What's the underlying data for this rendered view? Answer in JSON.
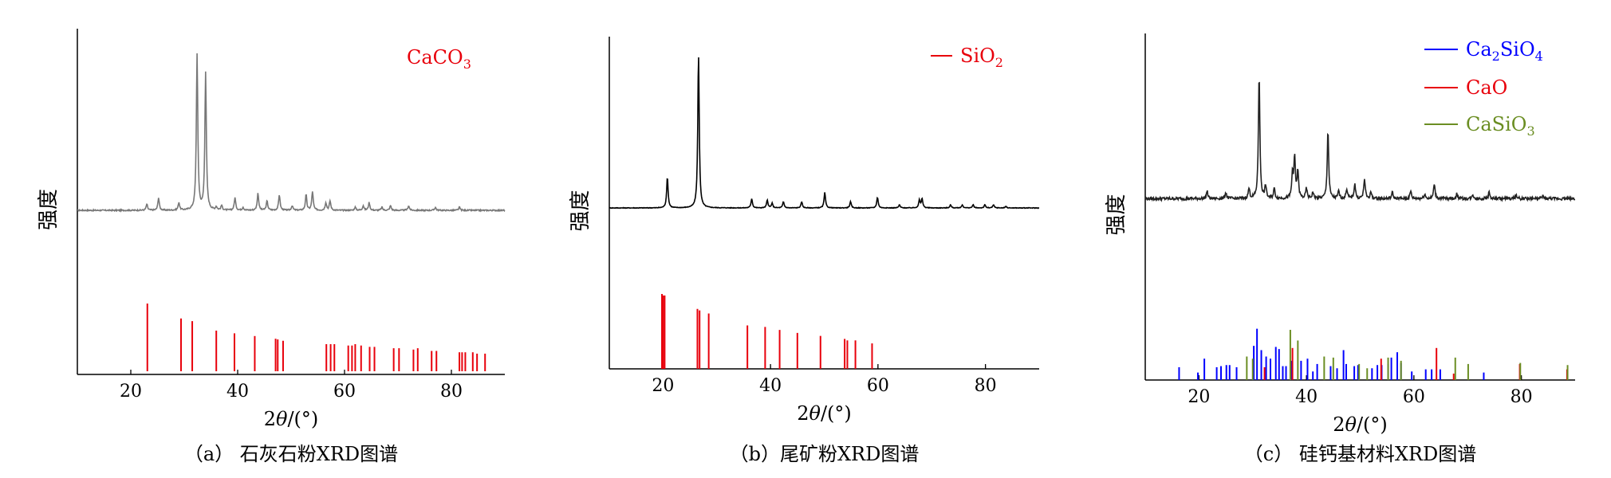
{
  "chart_data": [
    {
      "type": "line",
      "id": "a",
      "caption": "（a） 石灰石粉XRD图谱",
      "xlabel": "2θ/(°)",
      "ylabel": "强度",
      "xlim": [
        10,
        90
      ],
      "xticks": [
        20,
        40,
        60,
        80
      ],
      "trace_color": "#777777",
      "baseline": 0.02,
      "peaks": [
        [
          23.0,
          0.04
        ],
        [
          25.2,
          0.08
        ],
        [
          29.0,
          0.05
        ],
        [
          32.4,
          1.0
        ],
        [
          34.0,
          0.88
        ],
        [
          36.0,
          0.02
        ],
        [
          37.0,
          0.03
        ],
        [
          39.5,
          0.08
        ],
        [
          41.0,
          0.02
        ],
        [
          43.8,
          0.11
        ],
        [
          45.5,
          0.06
        ],
        [
          47.8,
          0.1
        ],
        [
          50.2,
          0.03
        ],
        [
          52.8,
          0.1
        ],
        [
          54.0,
          0.12
        ],
        [
          56.5,
          0.05
        ],
        [
          57.3,
          0.06
        ],
        [
          62.0,
          0.02
        ],
        [
          63.5,
          0.03
        ],
        [
          64.6,
          0.05
        ],
        [
          67.0,
          0.02
        ],
        [
          68.6,
          0.03
        ],
        [
          72.0,
          0.03
        ],
        [
          77.0,
          0.02
        ],
        [
          81.5,
          0.02
        ]
      ],
      "references": [
        {
          "label": "CaCO",
          "sub": "3",
          "color": "#e8000b",
          "lines": [
            [
              23.1,
              1.0
            ],
            [
              29.4,
              0.78
            ],
            [
              31.5,
              0.74
            ],
            [
              36.0,
              0.6
            ],
            [
              39.4,
              0.56
            ],
            [
              43.2,
              0.52
            ],
            [
              47.1,
              0.48
            ],
            [
              47.5,
              0.47
            ],
            [
              48.5,
              0.45
            ],
            [
              56.6,
              0.4
            ],
            [
              57.4,
              0.4
            ],
            [
              58.1,
              0.4
            ],
            [
              60.7,
              0.38
            ],
            [
              61.4,
              0.38
            ],
            [
              62.0,
              0.4
            ],
            [
              63.1,
              0.38
            ],
            [
              64.7,
              0.36
            ],
            [
              65.6,
              0.36
            ],
            [
              69.2,
              0.34
            ],
            [
              70.2,
              0.34
            ],
            [
              72.9,
              0.32
            ],
            [
              73.7,
              0.34
            ],
            [
              76.3,
              0.3
            ],
            [
              77.2,
              0.3
            ],
            [
              81.5,
              0.28
            ],
            [
              82.0,
              0.28
            ],
            [
              82.6,
              0.28
            ],
            [
              84.0,
              0.28
            ],
            [
              84.8,
              0.26
            ],
            [
              86.3,
              0.26
            ]
          ]
        }
      ]
    },
    {
      "type": "line",
      "id": "b",
      "caption": "（b）尾矿粉XRD图谱",
      "xlabel": "2θ/(°)",
      "ylabel": "强度",
      "xlim": [
        10,
        90
      ],
      "xticks": [
        20,
        40,
        60,
        80
      ],
      "trace_color": "#000000",
      "baseline": 0.01,
      "peaks": [
        [
          20.8,
          0.2
        ],
        [
          26.6,
          1.0
        ],
        [
          36.5,
          0.06
        ],
        [
          39.4,
          0.05
        ],
        [
          40.3,
          0.03
        ],
        [
          42.4,
          0.04
        ],
        [
          45.8,
          0.04
        ],
        [
          50.1,
          0.1
        ],
        [
          54.9,
          0.04
        ],
        [
          59.9,
          0.07
        ],
        [
          64.0,
          0.02
        ],
        [
          67.7,
          0.05
        ],
        [
          68.2,
          0.06
        ],
        [
          73.5,
          0.02
        ],
        [
          75.7,
          0.02
        ],
        [
          77.7,
          0.02
        ],
        [
          79.9,
          0.02
        ],
        [
          81.5,
          0.02
        ],
        [
          83.8,
          0.01
        ]
      ],
      "legend_line": true,
      "references": [
        {
          "label": "SiO",
          "sub": "2",
          "color": "#e8000b",
          "lines": [
            [
              19.8,
              1.0
            ],
            [
              20.0,
              0.98
            ],
            [
              20.3,
              0.98
            ],
            [
              26.4,
              0.8
            ],
            [
              26.8,
              0.78
            ],
            [
              28.5,
              0.74
            ],
            [
              35.7,
              0.58
            ],
            [
              39.0,
              0.56
            ],
            [
              41.7,
              0.52
            ],
            [
              45.0,
              0.48
            ],
            [
              49.3,
              0.44
            ],
            [
              53.8,
              0.4
            ],
            [
              54.3,
              0.38
            ],
            [
              55.8,
              0.38
            ],
            [
              58.9,
              0.34
            ]
          ]
        }
      ]
    },
    {
      "type": "line",
      "id": "c",
      "caption": "（c） 硅钙基材料XRD图谱",
      "xlabel": "2θ/(°)",
      "ylabel": "强度",
      "xlim": [
        10,
        90
      ],
      "xticks": [
        20,
        40,
        60,
        80
      ],
      "trace_color": "#222222",
      "baseline": 0.06,
      "peaks": [
        [
          21.5,
          0.06
        ],
        [
          25.0,
          0.05
        ],
        [
          29.3,
          0.08
        ],
        [
          31.2,
          1.0
        ],
        [
          32.4,
          0.1
        ],
        [
          34.0,
          0.08
        ],
        [
          37.4,
          0.2
        ],
        [
          37.8,
          0.32
        ],
        [
          38.4,
          0.22
        ],
        [
          40.0,
          0.08
        ],
        [
          41.2,
          0.05
        ],
        [
          44.0,
          0.55
        ],
        [
          46.0,
          0.06
        ],
        [
          47.5,
          0.08
        ],
        [
          49.0,
          0.12
        ],
        [
          50.8,
          0.16
        ],
        [
          52.0,
          0.05
        ],
        [
          56.0,
          0.05
        ],
        [
          59.4,
          0.06
        ],
        [
          62.0,
          0.04
        ],
        [
          63.8,
          0.12
        ],
        [
          68.0,
          0.04
        ],
        [
          71.0,
          0.03
        ],
        [
          74.0,
          0.05
        ],
        [
          79.0,
          0.03
        ],
        [
          84.0,
          0.02
        ]
      ],
      "legend_line": true,
      "references": [
        {
          "label": "Ca",
          "sub": "2",
          "label2": "SiO",
          "sub2": "4",
          "color": "#0000ff",
          "lines": [
            [
              16.3,
              0.24
            ],
            [
              19.8,
              0.14
            ],
            [
              21.0,
              0.4
            ],
            [
              23.3,
              0.24
            ],
            [
              24.1,
              0.26
            ],
            [
              25.1,
              0.28
            ],
            [
              25.7,
              0.28
            ],
            [
              27.0,
              0.24
            ],
            [
              30.2,
              0.64
            ],
            [
              30.8,
              0.96
            ],
            [
              31.6,
              0.56
            ],
            [
              32.5,
              0.44
            ],
            [
              33.3,
              0.4
            ],
            [
              34.3,
              0.62
            ],
            [
              34.9,
              0.58
            ],
            [
              35.6,
              0.26
            ],
            [
              36.2,
              0.26
            ],
            [
              37.2,
              0.36
            ],
            [
              39.0,
              0.36
            ],
            [
              40.2,
              0.4
            ],
            [
              41.2,
              0.16
            ],
            [
              42.0,
              0.3
            ],
            [
              44.5,
              0.26
            ],
            [
              45.7,
              0.22
            ],
            [
              46.9,
              0.56
            ],
            [
              47.4,
              0.3
            ],
            [
              48.9,
              0.26
            ],
            [
              49.6,
              0.28
            ],
            [
              52.2,
              0.22
            ],
            [
              53.2,
              0.28
            ],
            [
              54.0,
              0.28
            ],
            [
              55.2,
              0.3
            ],
            [
              55.8,
              0.42
            ],
            [
              56.9,
              0.52
            ],
            [
              57.6,
              0.32
            ],
            [
              59.6,
              0.16
            ],
            [
              62.2,
              0.2
            ],
            [
              63.3,
              0.2
            ],
            [
              64.9,
              0.2
            ],
            [
              73.0,
              0.14
            ]
          ]
        },
        {
          "label": "CaO",
          "color": "#e8000b",
          "lines": [
            [
              32.2,
              0.24
            ],
            [
              37.4,
              0.6
            ],
            [
              53.9,
              0.4
            ],
            [
              64.2,
              0.6
            ],
            [
              67.4,
              0.12
            ],
            [
              79.7,
              0.3
            ],
            [
              88.5,
              0.2
            ]
          ]
        },
        {
          "label": "CaSiO",
          "sub": "3",
          "color": "#6b8e23",
          "lines": [
            [
              28.9,
              0.44
            ],
            [
              30.0,
              0.4
            ],
            [
              37.0,
              0.94
            ],
            [
              38.4,
              0.74
            ],
            [
              43.3,
              0.44
            ],
            [
              45.0,
              0.42
            ],
            [
              49.8,
              0.3
            ],
            [
              51.3,
              0.22
            ],
            [
              55.2,
              0.42
            ],
            [
              57.6,
              0.36
            ],
            [
              67.7,
              0.42
            ],
            [
              70.1,
              0.3
            ],
            [
              79.8,
              0.32
            ],
            [
              88.6,
              0.28
            ]
          ]
        }
      ]
    }
  ]
}
